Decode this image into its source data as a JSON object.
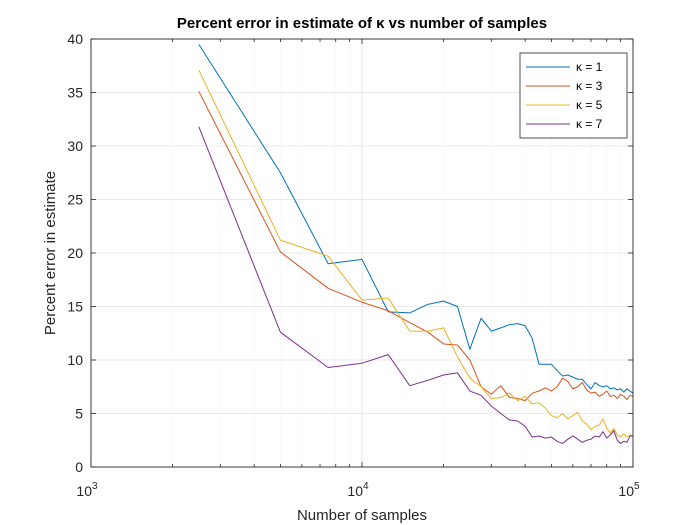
{
  "chart_data": {
    "type": "line",
    "title": "Percent error in estimate of κ vs number of samples",
    "xlabel": "Number of samples",
    "ylabel": "Percent error in estimate",
    "xscale": "log",
    "xlim": [
      1000,
      100000
    ],
    "ylim": [
      0,
      40
    ],
    "x_ticks": [
      1000,
      10000,
      100000
    ],
    "x_tick_labels": [
      {
        "base": "10",
        "exp": "3"
      },
      {
        "base": "10",
        "exp": "4"
      },
      {
        "base": "10",
        "exp": "5"
      }
    ],
    "y_ticks": [
      0,
      5,
      10,
      15,
      20,
      25,
      30,
      35,
      40
    ],
    "y_tick_labels": [
      "0",
      "5",
      "10",
      "15",
      "20",
      "25",
      "30",
      "35",
      "40"
    ],
    "grid": true,
    "legend_position": "top-right",
    "series": [
      {
        "name": "κ = 1",
        "color": "#0072BD",
        "points": [
          [
            2500,
            39.5
          ],
          [
            5000,
            27.5
          ],
          [
            7500,
            19.0
          ],
          [
            10000,
            19.4
          ],
          [
            12500,
            14.5
          ],
          [
            15000,
            14.4
          ],
          [
            17500,
            15.2
          ],
          [
            20000,
            15.5
          ],
          [
            22500,
            15.0
          ],
          [
            25000,
            11.0
          ],
          [
            27500,
            13.9
          ],
          [
            30000,
            12.7
          ],
          [
            32500,
            13.0
          ],
          [
            35000,
            13.3
          ],
          [
            37500,
            13.4
          ],
          [
            40000,
            13.2
          ],
          [
            42500,
            12.0
          ],
          [
            45000,
            9.6
          ],
          [
            47500,
            9.6
          ],
          [
            50000,
            9.6
          ],
          [
            52500,
            9.0
          ],
          [
            55000,
            8.5
          ],
          [
            57500,
            8.6
          ],
          [
            60000,
            8.4
          ],
          [
            62500,
            8.2
          ],
          [
            65000,
            8.2
          ],
          [
            67500,
            7.7
          ],
          [
            70000,
            7.3
          ],
          [
            72500,
            7.9
          ],
          [
            75000,
            7.6
          ],
          [
            77500,
            7.5
          ],
          [
            80000,
            7.6
          ],
          [
            82500,
            7.3
          ],
          [
            85000,
            7.4
          ],
          [
            87500,
            7.2
          ],
          [
            90000,
            7.3
          ],
          [
            92500,
            7.0
          ],
          [
            95000,
            7.3
          ],
          [
            97500,
            7.1
          ],
          [
            100000,
            6.9
          ]
        ]
      },
      {
        "name": "κ = 3",
        "color": "#D95319",
        "points": [
          [
            2500,
            35.1
          ],
          [
            5000,
            20.1
          ],
          [
            7500,
            16.7
          ],
          [
            10000,
            15.4
          ],
          [
            12500,
            14.6
          ],
          [
            15000,
            13.5
          ],
          [
            17500,
            12.6
          ],
          [
            20000,
            11.5
          ],
          [
            22500,
            11.4
          ],
          [
            25000,
            10.0
          ],
          [
            27500,
            7.5
          ],
          [
            30000,
            6.8
          ],
          [
            32500,
            7.6
          ],
          [
            35000,
            6.5
          ],
          [
            37500,
            6.4
          ],
          [
            40000,
            6.2
          ],
          [
            42500,
            6.9
          ],
          [
            45000,
            7.1
          ],
          [
            47500,
            7.4
          ],
          [
            50000,
            7.1
          ],
          [
            52500,
            7.5
          ],
          [
            55000,
            8.3
          ],
          [
            57500,
            8.0
          ],
          [
            60000,
            7.3
          ],
          [
            62500,
            7.5
          ],
          [
            65000,
            7.9
          ],
          [
            67500,
            7.2
          ],
          [
            70000,
            6.9
          ],
          [
            72500,
            7.0
          ],
          [
            75000,
            6.6
          ],
          [
            77500,
            6.8
          ],
          [
            80000,
            7.1
          ],
          [
            82500,
            6.6
          ],
          [
            85000,
            6.7
          ],
          [
            87500,
            6.4
          ],
          [
            90000,
            6.8
          ],
          [
            92500,
            6.6
          ],
          [
            95000,
            6.3
          ],
          [
            97500,
            6.7
          ],
          [
            100000,
            6.6
          ]
        ]
      },
      {
        "name": "κ = 5",
        "color": "#EDB120",
        "points": [
          [
            2500,
            37.1
          ],
          [
            5000,
            21.2
          ],
          [
            7500,
            19.7
          ],
          [
            10000,
            15.6
          ],
          [
            12500,
            15.8
          ],
          [
            15000,
            12.7
          ],
          [
            17500,
            12.7
          ],
          [
            20000,
            13.0
          ],
          [
            22500,
            10.3
          ],
          [
            25000,
            8.3
          ],
          [
            27500,
            7.5
          ],
          [
            30000,
            6.4
          ],
          [
            32500,
            6.5
          ],
          [
            35000,
            6.9
          ],
          [
            37500,
            6.2
          ],
          [
            40000,
            6.6
          ],
          [
            42500,
            5.9
          ],
          [
            45000,
            6.0
          ],
          [
            47500,
            5.5
          ],
          [
            50000,
            4.8
          ],
          [
            52500,
            4.6
          ],
          [
            55000,
            5.0
          ],
          [
            57500,
            4.5
          ],
          [
            60000,
            4.8
          ],
          [
            62500,
            5.1
          ],
          [
            65000,
            4.3
          ],
          [
            67500,
            4.0
          ],
          [
            70000,
            3.5
          ],
          [
            72500,
            3.8
          ],
          [
            75000,
            3.9
          ],
          [
            77500,
            4.5
          ],
          [
            80000,
            3.6
          ],
          [
            82500,
            3.2
          ],
          [
            85000,
            3.6
          ],
          [
            87500,
            3.0
          ],
          [
            90000,
            2.8
          ],
          [
            92500,
            3.1
          ],
          [
            95000,
            2.8
          ],
          [
            97500,
            3.0
          ],
          [
            100000,
            2.9
          ]
        ]
      },
      {
        "name": "κ = 7",
        "color": "#7E2F8E",
        "points": [
          [
            2500,
            31.8
          ],
          [
            5000,
            12.6
          ],
          [
            7500,
            9.3
          ],
          [
            10000,
            9.7
          ],
          [
            12500,
            10.5
          ],
          [
            15000,
            7.6
          ],
          [
            17500,
            8.1
          ],
          [
            20000,
            8.6
          ],
          [
            22500,
            8.8
          ],
          [
            25000,
            7.1
          ],
          [
            27500,
            6.7
          ],
          [
            30000,
            5.7
          ],
          [
            32500,
            5.0
          ],
          [
            35000,
            4.4
          ],
          [
            37500,
            4.3
          ],
          [
            40000,
            3.8
          ],
          [
            42500,
            2.8
          ],
          [
            45000,
            2.9
          ],
          [
            47500,
            2.7
          ],
          [
            50000,
            2.8
          ],
          [
            52500,
            2.4
          ],
          [
            55000,
            2.2
          ],
          [
            57500,
            2.6
          ],
          [
            60000,
            2.9
          ],
          [
            62500,
            2.6
          ],
          [
            65000,
            2.3
          ],
          [
            67500,
            2.5
          ],
          [
            70000,
            2.6
          ],
          [
            72500,
            2.9
          ],
          [
            75000,
            2.8
          ],
          [
            77500,
            3.3
          ],
          [
            80000,
            2.7
          ],
          [
            82500,
            3.0
          ],
          [
            85000,
            3.4
          ],
          [
            87500,
            2.5
          ],
          [
            90000,
            2.2
          ],
          [
            92500,
            2.4
          ],
          [
            95000,
            2.3
          ],
          [
            97500,
            2.9
          ],
          [
            100000,
            2.9
          ]
        ]
      }
    ]
  }
}
